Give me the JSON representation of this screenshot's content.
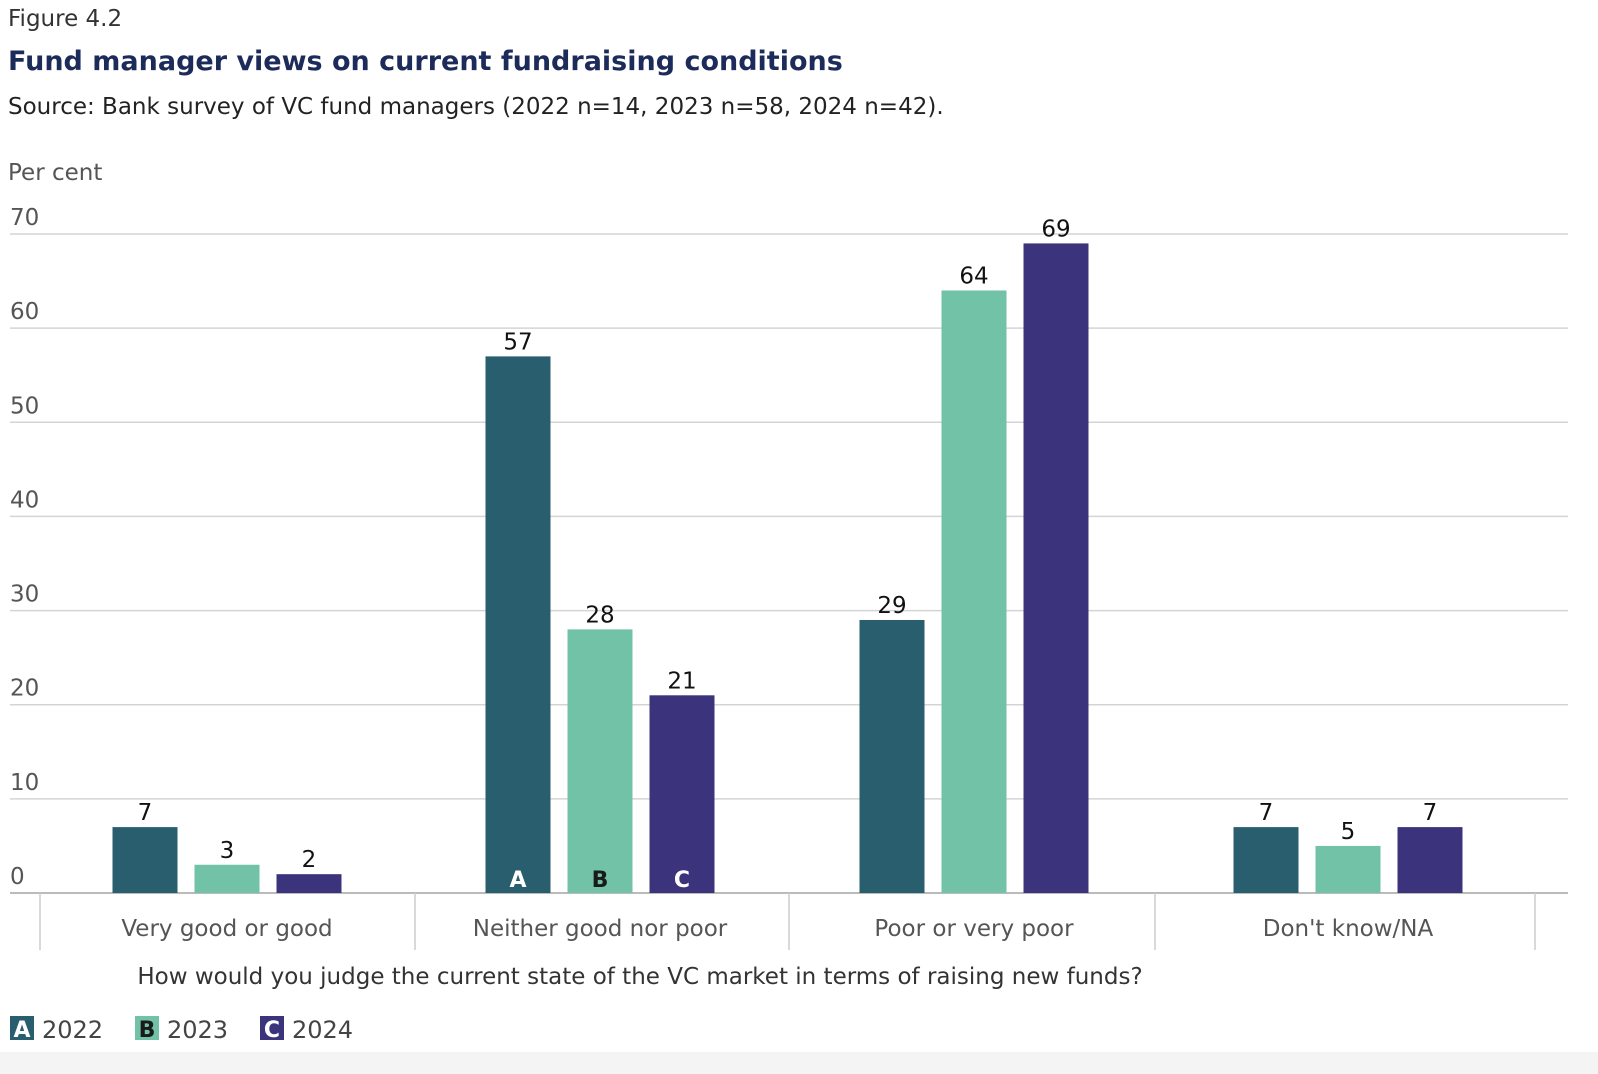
{
  "figure_label": "Figure 4.2",
  "chart_data": {
    "type": "bar",
    "title": "Fund manager views on current fundraising conditions",
    "subtitle": "Source: Bank survey of VC fund managers (2022 n=14, 2023 n=58, 2024 n=42).",
    "ylabel": "Per cent",
    "xlabel": "How would you judge the current state of the VC market in terms of raising new funds?",
    "ylim": [
      0,
      70
    ],
    "yticks": [
      0,
      10,
      20,
      30,
      40,
      50,
      60,
      70
    ],
    "grid": true,
    "legend_position": "bottom-left",
    "categories": [
      "Very good or good",
      "Neither good nor poor",
      "Poor or very poor",
      "Don't know/NA"
    ],
    "series": [
      {
        "name": "2022",
        "marker": "A",
        "color": "#285e6e",
        "marker_text_color": "#ffffff",
        "values": [
          7,
          57,
          29,
          7
        ]
      },
      {
        "name": "2023",
        "marker": "B",
        "color": "#72c2a7",
        "marker_text_color": "#1a1a1a",
        "values": [
          3,
          28,
          64,
          5
        ]
      },
      {
        "name": "2024",
        "marker": "C",
        "color": "#3b347c",
        "marker_text_color": "#ffffff",
        "values": [
          2,
          21,
          69,
          7
        ]
      }
    ]
  }
}
